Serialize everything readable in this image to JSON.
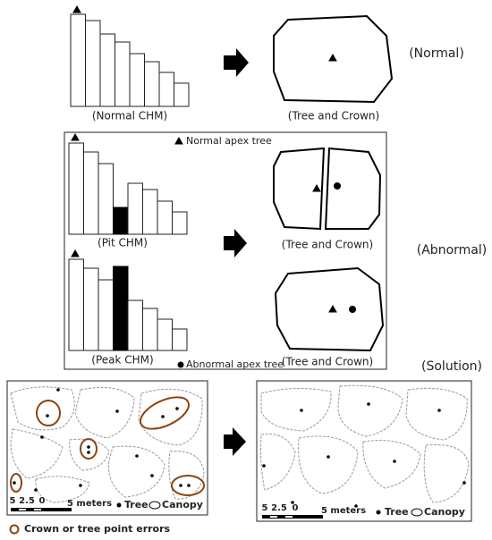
{
  "normal": {
    "chm_label": "(Normal CHM)",
    "crown_label": "(Tree and Crown)",
    "case_label": "(Normal)"
  },
  "abnormal": {
    "legend_normal": "Normal apex tree",
    "pit_label": "(Pit CHM)",
    "pit_crown_label": "(Tree and Crown)",
    "case_label": "(Abnormal)",
    "peak_label": "(Peak CHM)",
    "legend_abnormal": "Abnormal apex tree",
    "peak_crown_label": "(Tree and Crown)"
  },
  "solution": {
    "case_label": "(Solution)",
    "panels": [
      {
        "scale_ticks": [
          "5",
          "2.5",
          "0"
        ],
        "scale_unit": "5 meters",
        "legend": [
          "Tree",
          "Canopy"
        ]
      },
      {
        "scale_ticks": [
          "5",
          "2.5",
          "0"
        ],
        "scale_unit": "5 meters",
        "legend": [
          "Tree",
          "Canopy"
        ]
      }
    ],
    "error_legend": "Crown or tree point errors"
  }
}
